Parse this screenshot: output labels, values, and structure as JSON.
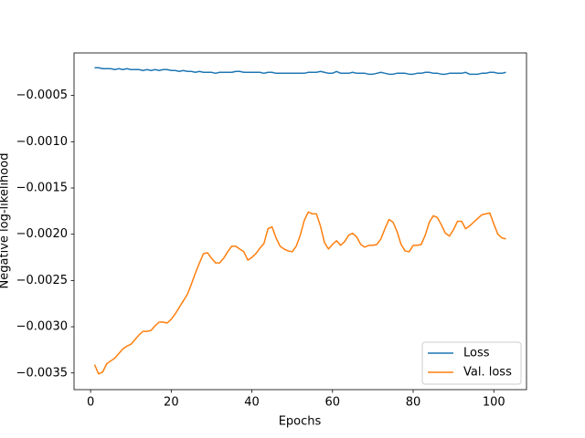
{
  "chart_data": {
    "type": "line",
    "xlabel": "Epochs",
    "ylabel": "Negative log-likelihood",
    "x": [
      1,
      2,
      3,
      4,
      5,
      6,
      7,
      8,
      9,
      10,
      11,
      12,
      13,
      14,
      15,
      16,
      17,
      18,
      19,
      20,
      21,
      22,
      23,
      24,
      25,
      26,
      27,
      28,
      29,
      30,
      31,
      32,
      33,
      34,
      35,
      36,
      37,
      38,
      39,
      40,
      41,
      42,
      43,
      44,
      45,
      46,
      47,
      48,
      49,
      50,
      51,
      52,
      53,
      54,
      55,
      56,
      57,
      58,
      59,
      60,
      61,
      62,
      63,
      64,
      65,
      66,
      67,
      68,
      69,
      70,
      71,
      72,
      73,
      74,
      75,
      76,
      77,
      78,
      79,
      80,
      81,
      82,
      83,
      84,
      85,
      86,
      87,
      88,
      89,
      90,
      91,
      92,
      93,
      94,
      95,
      96,
      97,
      98,
      99,
      100,
      101,
      102,
      103
    ],
    "series": [
      {
        "name": "Loss",
        "color": "#1f77b4",
        "values": [
          -0.0002,
          -0.0002,
          -0.00021,
          -0.00021,
          -0.00021,
          -0.00022,
          -0.00021,
          -0.00022,
          -0.00021,
          -0.00022,
          -0.00022,
          -0.00022,
          -0.00023,
          -0.00022,
          -0.00023,
          -0.00022,
          -0.00023,
          -0.00022,
          -0.00022,
          -0.00023,
          -0.00023,
          -0.00024,
          -0.00023,
          -0.00024,
          -0.00024,
          -0.00025,
          -0.00024,
          -0.00025,
          -0.00025,
          -0.00025,
          -0.00026,
          -0.00025,
          -0.00025,
          -0.00025,
          -0.00025,
          -0.00024,
          -0.00024,
          -0.00025,
          -0.00025,
          -0.00025,
          -0.00025,
          -0.00025,
          -0.00026,
          -0.00025,
          -0.00025,
          -0.00026,
          -0.00026,
          -0.00026,
          -0.00026,
          -0.00026,
          -0.00026,
          -0.00026,
          -0.00026,
          -0.00025,
          -0.00025,
          -0.00025,
          -0.00024,
          -0.00025,
          -0.00026,
          -0.00026,
          -0.00024,
          -0.00026,
          -0.00026,
          -0.00026,
          -0.00025,
          -0.00026,
          -0.00026,
          -0.00026,
          -0.00027,
          -0.00027,
          -0.00026,
          -0.00025,
          -0.00026,
          -0.00027,
          -0.00027,
          -0.00026,
          -0.00026,
          -0.00026,
          -0.00027,
          -0.00027,
          -0.00026,
          -0.00026,
          -0.00025,
          -0.00025,
          -0.00026,
          -0.00026,
          -0.00027,
          -0.00027,
          -0.00026,
          -0.00026,
          -0.00026,
          -0.00026,
          -0.00025,
          -0.00027,
          -0.00027,
          -0.00027,
          -0.00026,
          -0.00026,
          -0.00025,
          -0.00025,
          -0.00026,
          -0.00026,
          -0.00025
        ]
      },
      {
        "name": "Val. loss",
        "color": "#ff7f0e",
        "values": [
          -0.00341,
          -0.00351,
          -0.00349,
          -0.0034,
          -0.00337,
          -0.00334,
          -0.00329,
          -0.00324,
          -0.00321,
          -0.00319,
          -0.00314,
          -0.00309,
          -0.00305,
          -0.00305,
          -0.00304,
          -0.00299,
          -0.00295,
          -0.00295,
          -0.00296,
          -0.00292,
          -0.00286,
          -0.00279,
          -0.00272,
          -0.00265,
          -0.00254,
          -0.00242,
          -0.00231,
          -0.00221,
          -0.0022,
          -0.00226,
          -0.00231,
          -0.00231,
          -0.00226,
          -0.00219,
          -0.00213,
          -0.00213,
          -0.00216,
          -0.00219,
          -0.00228,
          -0.00225,
          -0.00221,
          -0.00215,
          -0.0021,
          -0.00194,
          -0.00192,
          -0.00204,
          -0.00213,
          -0.00216,
          -0.00218,
          -0.00219,
          -0.00213,
          -0.00201,
          -0.00185,
          -0.00176,
          -0.00178,
          -0.00178,
          -0.00191,
          -0.00209,
          -0.00216,
          -0.00211,
          -0.00207,
          -0.00212,
          -0.00208,
          -0.00201,
          -0.00199,
          -0.00203,
          -0.00211,
          -0.00214,
          -0.00212,
          -0.00212,
          -0.00211,
          -0.00205,
          -0.00194,
          -0.00184,
          -0.00187,
          -0.00197,
          -0.00211,
          -0.00218,
          -0.00219,
          -0.00212,
          -0.00212,
          -0.00211,
          -0.00201,
          -0.00187,
          -0.0018,
          -0.00182,
          -0.0019,
          -0.00199,
          -0.00202,
          -0.00195,
          -0.00186,
          -0.00186,
          -0.00194,
          -0.00191,
          -0.00187,
          -0.00183,
          -0.00179,
          -0.00178,
          -0.00177,
          -0.00189,
          -0.002,
          -0.00204,
          -0.00205
        ]
      }
    ],
    "xlim": [
      -4.1,
      108.1
    ],
    "xticks": [
      0,
      20,
      40,
      60,
      80,
      100
    ],
    "ylim": [
      -0.00368,
      -4e-05
    ],
    "yticks": [
      {
        "value": -0.0005,
        "label": "−0.0005"
      },
      {
        "value": -0.001,
        "label": "−0.0010"
      },
      {
        "value": -0.0015,
        "label": "−0.0015"
      },
      {
        "value": -0.002,
        "label": "−0.0020"
      },
      {
        "value": -0.0025,
        "label": "−0.0025"
      },
      {
        "value": -0.003,
        "label": "−0.0030"
      },
      {
        "value": -0.0035,
        "label": "−0.0035"
      }
    ],
    "grid": false,
    "legend": "lower right"
  }
}
